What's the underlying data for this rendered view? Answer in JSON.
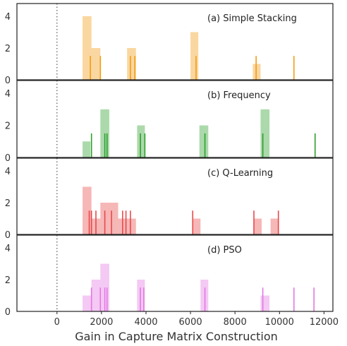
{
  "chart_data": {
    "type": "bar",
    "xlabel": "Gain in Capture Matrix Construction",
    "xlim": [
      -1800,
      12400
    ],
    "ylim": [
      0,
      4.8
    ],
    "x_ticks": [
      0,
      2000,
      4000,
      6000,
      8000,
      10000,
      12000
    ],
    "y_ticks": [
      0,
      2,
      4
    ],
    "reference_line_x": 0,
    "panels": [
      {
        "title": "(a) Simple Stacking",
        "color": "#f39c12",
        "histogram": [
          {
            "x0": 1150,
            "x1": 1550,
            "count": 4
          },
          {
            "x0": 1550,
            "x1": 1950,
            "count": 2
          },
          {
            "x0": 3150,
            "x1": 3550,
            "count": 2
          },
          {
            "x0": 6000,
            "x1": 6350,
            "count": 3
          },
          {
            "x0": 8800,
            "x1": 9150,
            "count": 1
          }
        ],
        "rug_x": [
          1500,
          1950,
          3300,
          3500,
          6250,
          8950,
          10650
        ],
        "rug_height": 1.5
      },
      {
        "title": "(b) Frequency",
        "color": "#2ca02c",
        "histogram": [
          {
            "x0": 1150,
            "x1": 1500,
            "count": 1
          },
          {
            "x0": 1950,
            "x1": 2350,
            "count": 3
          },
          {
            "x0": 3600,
            "x1": 3950,
            "count": 2
          },
          {
            "x0": 6400,
            "x1": 6800,
            "count": 2
          },
          {
            "x0": 9150,
            "x1": 9550,
            "count": 3
          }
        ],
        "rug_x": [
          1550,
          2150,
          2250,
          3750,
          3950,
          6650,
          9250,
          11600
        ],
        "rug_height": 1.5
      },
      {
        "title": "(c) Q-Learning",
        "color": "#e84a4a",
        "histogram": [
          {
            "x0": 1150,
            "x1": 1550,
            "count": 3
          },
          {
            "x0": 1550,
            "x1": 1950,
            "count": 1
          },
          {
            "x0": 1950,
            "x1": 2350,
            "count": 2
          },
          {
            "x0": 2350,
            "x1": 2750,
            "count": 2
          },
          {
            "x0": 2750,
            "x1": 3150,
            "count": 1
          },
          {
            "x0": 3150,
            "x1": 3550,
            "count": 1
          },
          {
            "x0": 6100,
            "x1": 6450,
            "count": 1
          },
          {
            "x0": 8850,
            "x1": 9200,
            "count": 1
          },
          {
            "x0": 9600,
            "x1": 9950,
            "count": 1
          }
        ],
        "rug_x": [
          1450,
          1550,
          1750,
          2150,
          2450,
          2950,
          3100,
          3300,
          6100,
          8850,
          9950
        ],
        "rug_height": 1.5
      },
      {
        "title": "(d) PSO",
        "color": "#e377e3",
        "histogram": [
          {
            "x0": 1150,
            "x1": 1550,
            "count": 1
          },
          {
            "x0": 1550,
            "x1": 1950,
            "count": 2
          },
          {
            "x0": 1950,
            "x1": 2350,
            "count": 3
          },
          {
            "x0": 3600,
            "x1": 3950,
            "count": 2
          },
          {
            "x0": 6450,
            "x1": 6800,
            "count": 2
          },
          {
            "x0": 9150,
            "x1": 9550,
            "count": 1
          }
        ],
        "rug_x": [
          1550,
          1950,
          2150,
          2250,
          3750,
          3900,
          6650,
          9250,
          10650,
          11550
        ],
        "rug_height": 1.5
      }
    ]
  }
}
